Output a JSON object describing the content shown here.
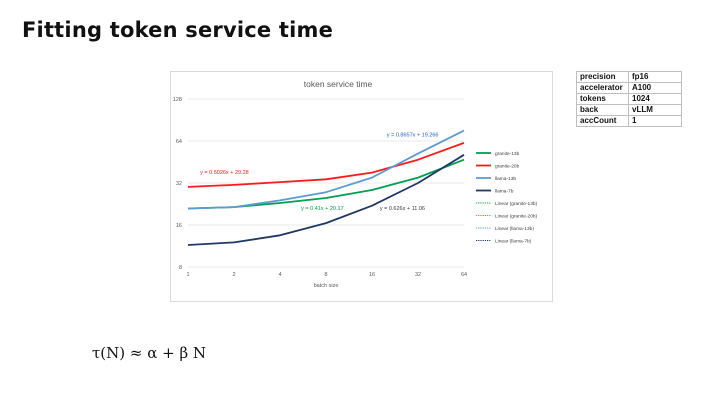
{
  "page": {
    "title": "Fitting token service time",
    "formula": "τ(N) ≈ α + β N"
  },
  "config_table": {
    "rows": [
      {
        "key": "precision",
        "value": "fp16"
      },
      {
        "key": "accelerator",
        "value": "A100"
      },
      {
        "key": "tokens",
        "value": "1024"
      },
      {
        "key": "back",
        "value": "vLLM"
      },
      {
        "key": "accCount",
        "value": "1"
      }
    ]
  },
  "chart_data": {
    "type": "line",
    "title": "token service time",
    "xlabel": "batch size",
    "ylabel": "",
    "x": [
      1,
      2,
      4,
      8,
      16,
      32,
      64
    ],
    "x_scale": "log2",
    "y_scale": "log2",
    "ylim": [
      8,
      128
    ],
    "yticks": [
      8,
      16,
      32,
      64,
      128
    ],
    "grid": "horizontal",
    "legend_position": "right",
    "series": [
      {
        "name": "granite-13b",
        "color": "#00a050",
        "values": [
          21,
          21.5,
          23,
          25,
          28.5,
          35,
          47
        ]
      },
      {
        "name": "granite-20b",
        "color": "#ff1a1a",
        "values": [
          30,
          31,
          32.5,
          34,
          38,
          47,
          62
        ]
      },
      {
        "name": "llama-13b",
        "color": "#5b9bd5",
        "values": [
          21,
          21.5,
          24,
          27.5,
          35,
          52,
          76
        ]
      },
      {
        "name": "llama-7b",
        "color": "#1f3864",
        "values": [
          11.5,
          12,
          13.5,
          16.5,
          22,
          32,
          51
        ]
      }
    ],
    "trendline_legend": [
      {
        "name": "Linear (granite-13b)",
        "color": "#00a050"
      },
      {
        "name": "Linear (granite-20b)",
        "color": "#ff6a3a"
      },
      {
        "name": "Linear (llama-13b)",
        "color": "#5b9bd5"
      },
      {
        "name": "Linear (llama-7b)",
        "color": "#1f3864"
      }
    ],
    "annotations": [
      {
        "text": "y = 0.5026x + 29.28",
        "color": "#ff1a1a",
        "x": 1.2,
        "y": 37
      },
      {
        "text": "y = 0.8657x + 19.266",
        "color": "#1f5fd0",
        "x": 20,
        "y": 69
      },
      {
        "text": "y = 0.41x + 20.17",
        "color": "#00a050",
        "x": 5.5,
        "y": 20.5
      },
      {
        "text": "y = 0.626x + 11.06",
        "color": "#404040",
        "x": 18,
        "y": 20.5
      }
    ]
  }
}
